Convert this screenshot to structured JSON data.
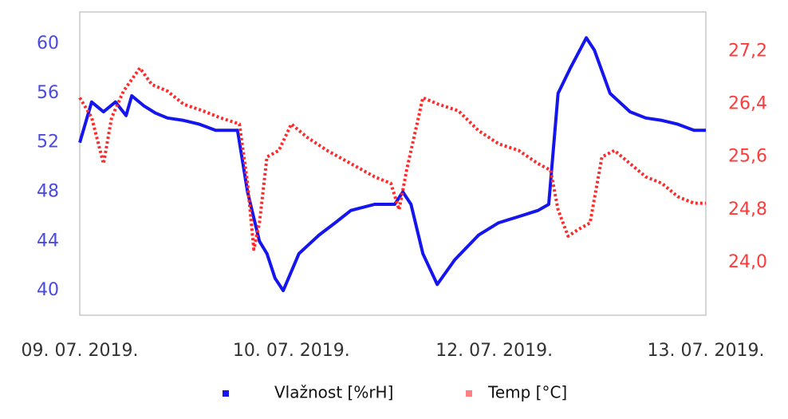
{
  "chart_data": {
    "type": "line",
    "xlim": [
      0,
      100
    ],
    "xticks": [
      {
        "value": 0,
        "label": "09. 07. 2019."
      },
      {
        "value": 33.8,
        "label": "10. 07. 2019."
      },
      {
        "value": 66.2,
        "label": "12. 07. 2019."
      },
      {
        "value": 100,
        "label": "13. 07. 2019."
      }
    ],
    "ylim": [
      38,
      62.6
    ],
    "yticks": [
      40,
      44,
      48,
      52,
      56,
      60
    ],
    "y2lim": [
      23.2,
      27.8
    ],
    "y2ticks": [
      {
        "value": 24.0,
        "label": "24,0"
      },
      {
        "value": 24.8,
        "label": "24,8"
      },
      {
        "value": 25.6,
        "label": "25,6"
      },
      {
        "value": 26.4,
        "label": "26,4"
      },
      {
        "value": 27.2,
        "label": "27,2"
      }
    ],
    "legend": "bottom",
    "series": [
      {
        "name": "Vlažnost [%rH]",
        "color": "#1515ee",
        "style": "solid",
        "x": [
          0,
          1.9,
          3.8,
          5.7,
          7.4,
          8.3,
          10.2,
          12.1,
          14,
          16.6,
          19.1,
          21.7,
          25.2,
          26.8,
          28.7,
          29.9,
          31.2,
          32.5,
          35,
          38.2,
          40.8,
          43.3,
          47.1,
          50.3,
          51.6,
          52.9,
          54.8,
          57.1,
          59.9,
          63.7,
          66.9,
          70.1,
          73.2,
          74.9,
          76.4,
          78.3,
          80.9,
          82.2,
          84.7,
          87.9,
          90.4,
          93,
          95.5,
          98.1,
          100
        ],
        "values": [
          52,
          55.3,
          54.5,
          55.3,
          54.2,
          55.8,
          55,
          54.4,
          54,
          53.8,
          53.5,
          53,
          53,
          48,
          44,
          43,
          41,
          40,
          43,
          44.5,
          45.5,
          46.5,
          47,
          47,
          48,
          47,
          43,
          40.5,
          42.5,
          44.5,
          45.5,
          46,
          46.5,
          47,
          56,
          58,
          60.5,
          59.5,
          56,
          54.5,
          54,
          53.8,
          53.5,
          53,
          53
        ]
      },
      {
        "name": "Temp [°C]",
        "color": "#ff2a2a",
        "style": "dotted",
        "axis": "y2",
        "x": [
          0,
          1.9,
          3.8,
          5.1,
          7,
          9.6,
          11.5,
          14,
          16.6,
          19.7,
          22.3,
          25.5,
          26.8,
          27.8,
          28.7,
          29.9,
          31.8,
          33.8,
          36.3,
          39.5,
          43.3,
          47.1,
          49.7,
          51,
          52.2,
          54.8,
          57.3,
          60.5,
          63.7,
          66.9,
          70.1,
          73.2,
          75.2,
          76.4,
          78,
          79.6,
          81.5,
          83.4,
          85.4,
          87.9,
          90.4,
          93,
          95.5,
          98.1,
          100
        ],
        "values": [
          26.5,
          26.2,
          25.5,
          26.2,
          26.6,
          26.95,
          26.7,
          26.6,
          26.4,
          26.3,
          26.2,
          26.1,
          25.2,
          24.2,
          24.6,
          25.6,
          25.7,
          26.1,
          25.9,
          25.7,
          25.5,
          25.3,
          25.2,
          24.8,
          25.4,
          26.5,
          26.4,
          26.3,
          26,
          25.8,
          25.7,
          25.5,
          25.4,
          24.8,
          24.4,
          24.5,
          24.6,
          25.6,
          25.7,
          25.5,
          25.3,
          25.2,
          25.0,
          24.9,
          24.9
        ]
      }
    ]
  }
}
